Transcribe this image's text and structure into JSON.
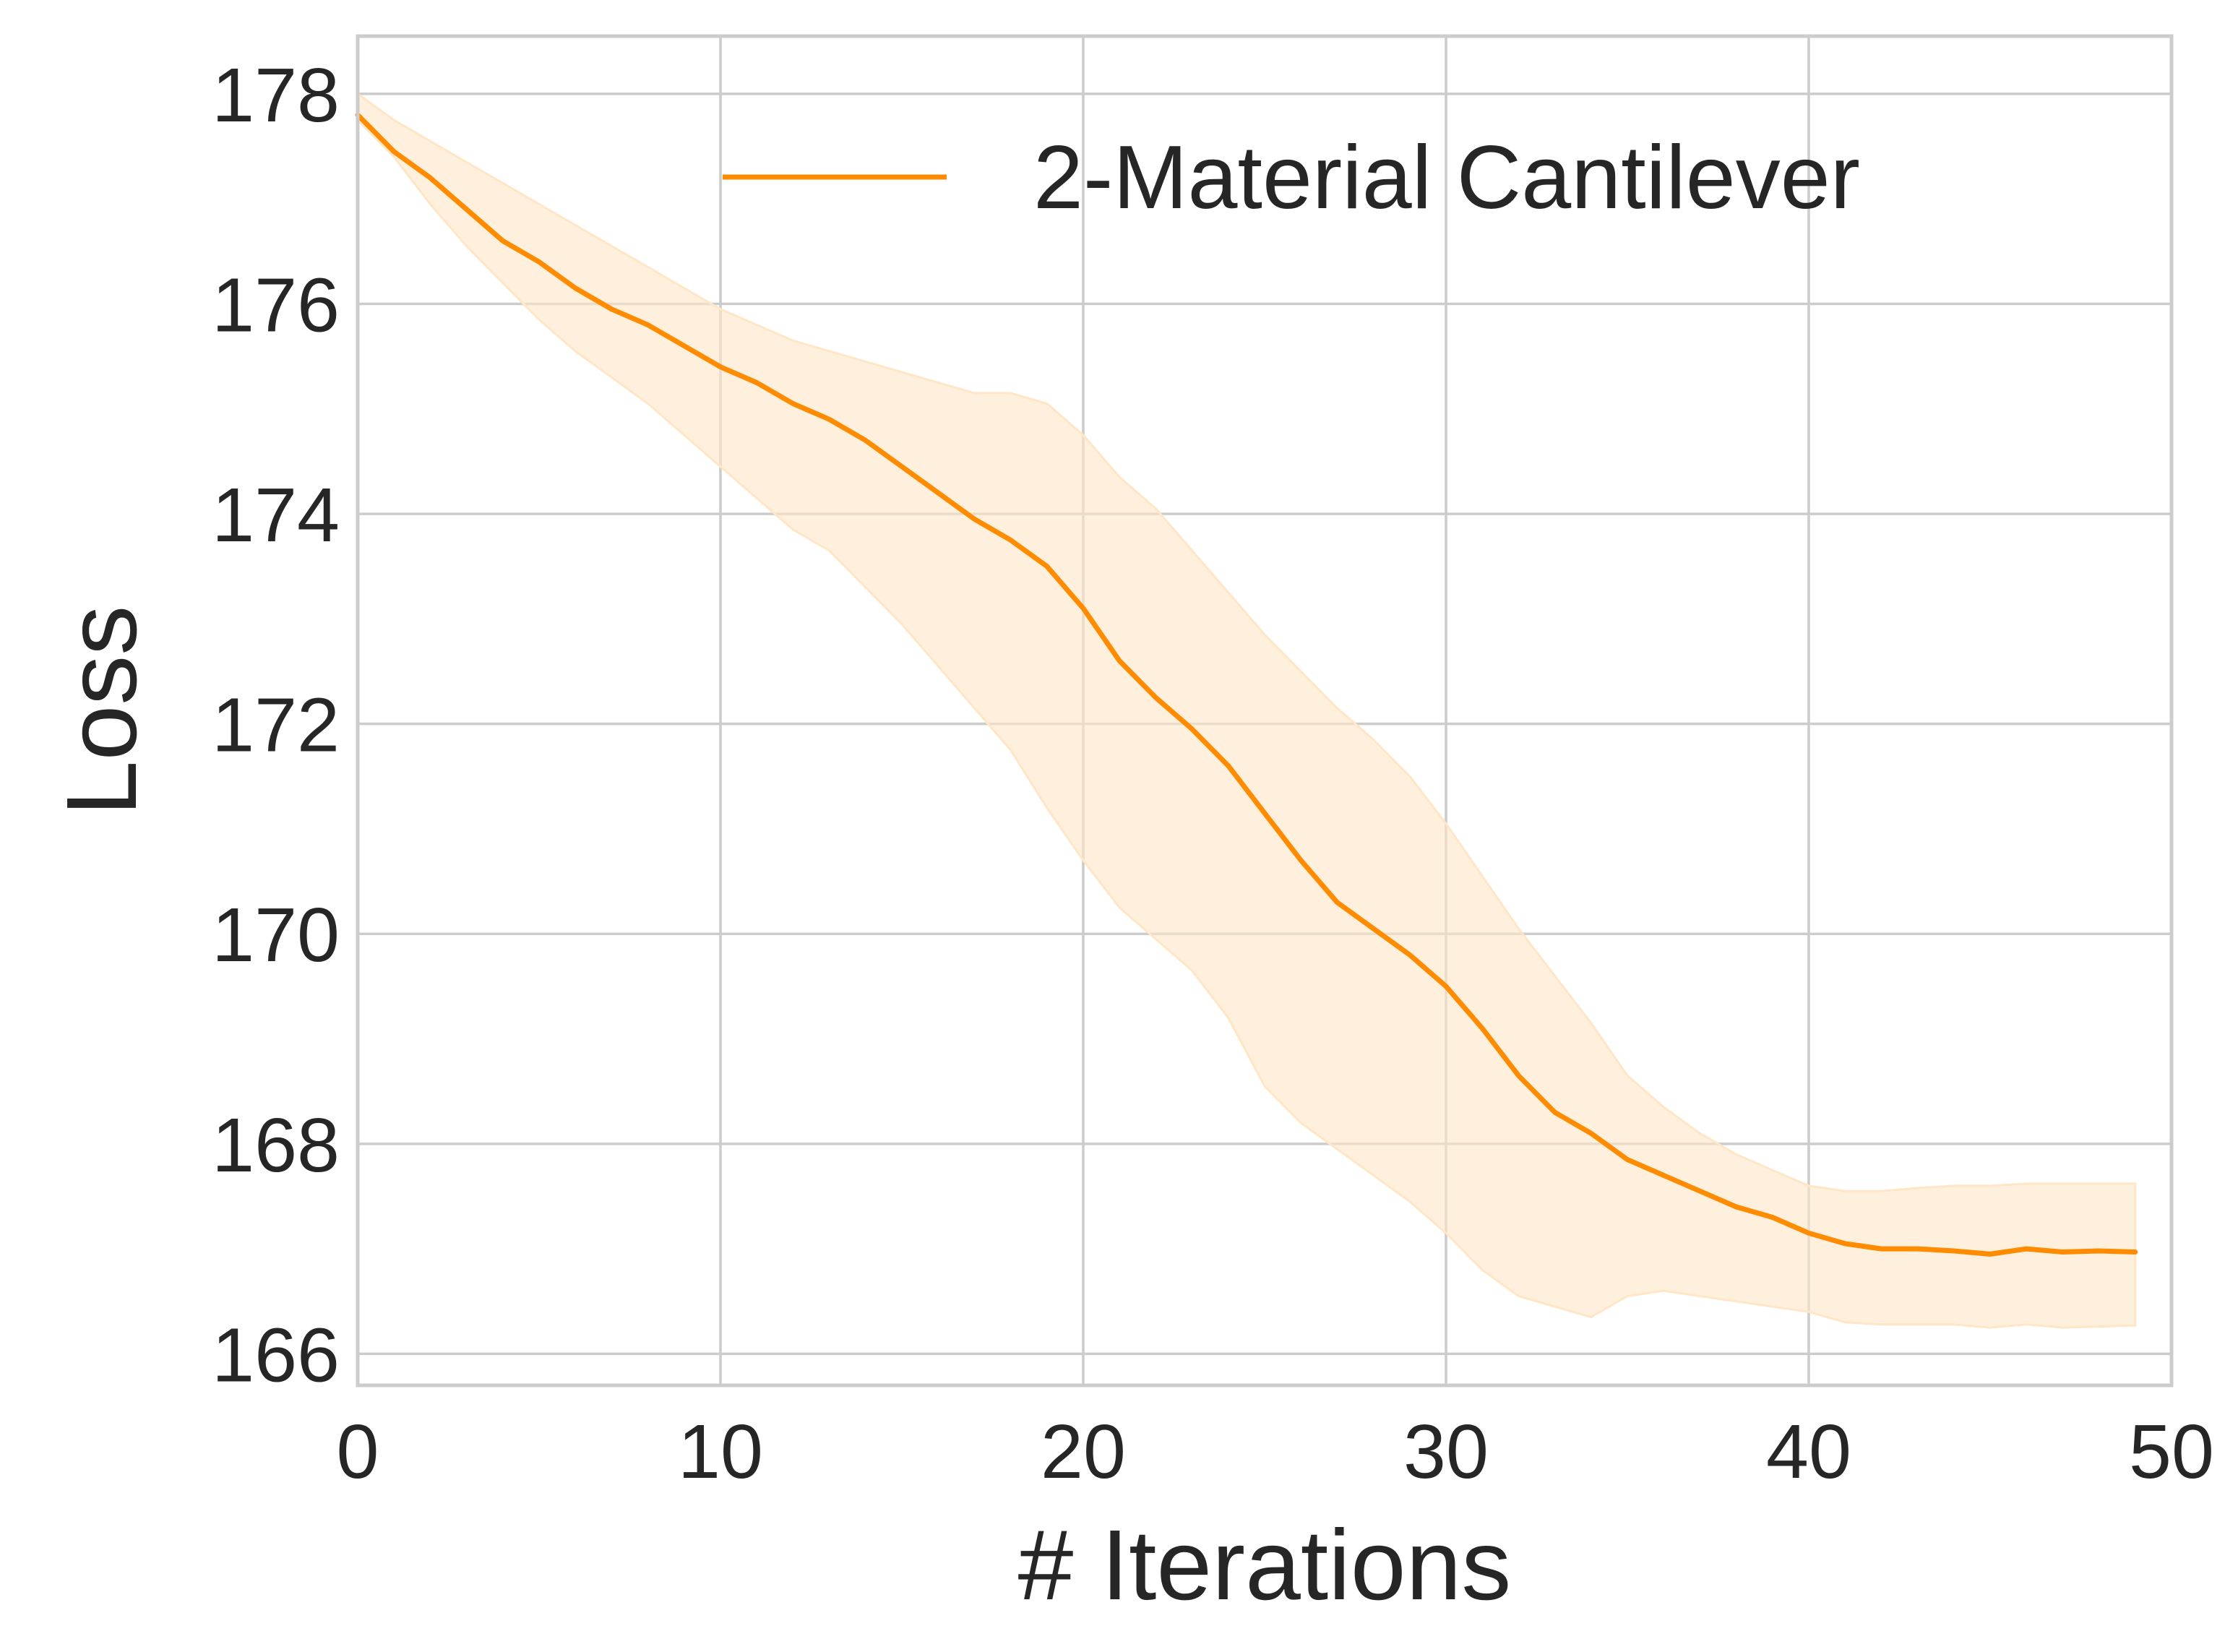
{
  "chart_data": {
    "type": "line",
    "title": "",
    "xlabel": "# Iterations",
    "ylabel": "Loss",
    "xlim": [
      0,
      50
    ],
    "ylim": [
      165.7,
      178.55
    ],
    "xticks": [
      0,
      10,
      20,
      30,
      40,
      50
    ],
    "yticks": [
      166,
      168,
      170,
      172,
      174,
      176,
      178
    ],
    "grid": true,
    "legend": "top-right",
    "colors": {
      "line": "#ff8c00",
      "band": "#ffe6c6",
      "grid": "#cccccc",
      "frame": "#cccccc",
      "text": "#262626"
    },
    "x": [
      0,
      1,
      2,
      3,
      4,
      5,
      6,
      7,
      8,
      9,
      10,
      11,
      12,
      13,
      14,
      15,
      16,
      17,
      18,
      19,
      20,
      21,
      22,
      23,
      24,
      25,
      26,
      27,
      28,
      29,
      30,
      31,
      32,
      33,
      34,
      35,
      36,
      37,
      38,
      39,
      40,
      41,
      42,
      43,
      44,
      45,
      46,
      47,
      48,
      49
    ],
    "series": [
      {
        "name": "2-Material Cantilever",
        "values": [
          177.8,
          177.45,
          177.2,
          176.9,
          176.6,
          176.4,
          176.15,
          175.95,
          175.8,
          175.6,
          175.4,
          175.25,
          175.05,
          174.9,
          174.7,
          174.45,
          174.2,
          173.95,
          173.75,
          173.5,
          173.1,
          172.6,
          172.25,
          171.95,
          171.6,
          171.15,
          170.7,
          170.3,
          170.05,
          169.8,
          169.5,
          169.1,
          168.65,
          168.3,
          168.1,
          167.85,
          167.7,
          167.55,
          167.4,
          167.3,
          167.15,
          167.05,
          167.0,
          167.0,
          166.98,
          166.95,
          167.0,
          166.97,
          166.98,
          166.97
        ],
        "lower": [
          177.75,
          177.4,
          176.95,
          176.55,
          176.2,
          175.85,
          175.55,
          175.3,
          175.05,
          174.75,
          174.45,
          174.15,
          173.85,
          173.65,
          173.3,
          172.95,
          172.55,
          172.15,
          171.75,
          171.2,
          170.7,
          170.25,
          169.95,
          169.65,
          169.2,
          168.55,
          168.2,
          167.95,
          167.7,
          167.45,
          167.15,
          166.8,
          166.55,
          166.45,
          166.35,
          166.55,
          166.6,
          166.55,
          166.5,
          166.45,
          166.4,
          166.3,
          166.28,
          166.28,
          166.28,
          166.25,
          166.28,
          166.25,
          166.26,
          166.27
        ],
        "upper": [
          178.0,
          177.75,
          177.55,
          177.35,
          177.15,
          176.95,
          176.75,
          176.55,
          176.35,
          176.15,
          175.95,
          175.8,
          175.65,
          175.55,
          175.45,
          175.35,
          175.25,
          175.15,
          175.15,
          175.05,
          174.75,
          174.35,
          174.05,
          173.65,
          173.25,
          172.85,
          172.5,
          172.15,
          171.85,
          171.5,
          171.05,
          170.55,
          170.05,
          169.6,
          169.15,
          168.65,
          168.35,
          168.1,
          167.9,
          167.75,
          167.6,
          167.55,
          167.55,
          167.58,
          167.6,
          167.6,
          167.62,
          167.62,
          167.62,
          167.62
        ]
      }
    ]
  }
}
